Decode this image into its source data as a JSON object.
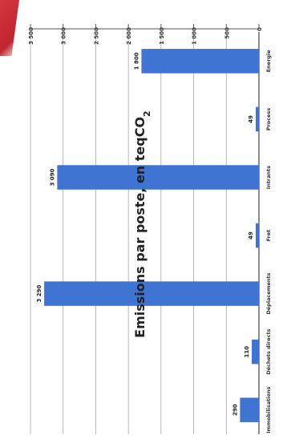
{
  "chart_data": {
    "type": "bar",
    "title": "Emissions par poste, en teqCO",
    "title_subscript": "2",
    "categories": [
      "Energie",
      "Process",
      "Intrants",
      "Fret",
      "Déplacements",
      "Déchets directs",
      "Immobilisations"
    ],
    "values": [
      1800,
      49,
      3090,
      49,
      3290,
      110,
      290
    ],
    "value_labels": [
      "1 800",
      "49",
      "3 090",
      "49",
      "3 290",
      "110",
      "290"
    ],
    "ylim": [
      0,
      3500
    ],
    "yticks": [
      0,
      500,
      1000,
      1500,
      2000,
      2500,
      3000,
      3500
    ],
    "ytick_labels": [
      "0",
      "500",
      "1 000",
      "1 500",
      "2 000",
      "2 500",
      "3 000",
      "3 500"
    ],
    "orientation": "rotated-90",
    "grid": true,
    "bar_color": "#3f74d2"
  },
  "decor": {
    "corner_accent_color": "#c92c36"
  }
}
